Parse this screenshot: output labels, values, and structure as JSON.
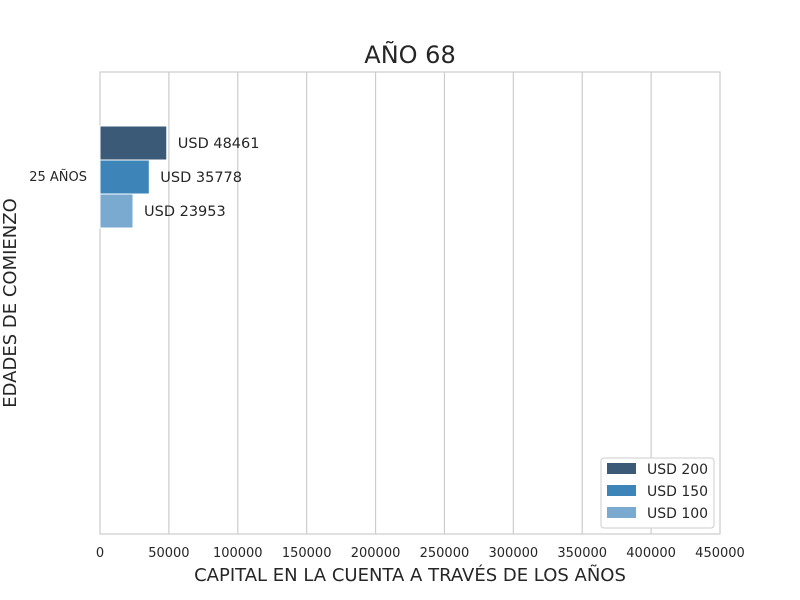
{
  "chart_data": {
    "type": "bar",
    "orientation": "horizontal",
    "title": "AÑO 68",
    "xlabel": "CAPITAL EN LA CUENTA A TRAVÉS DE LOS AÑOS",
    "ylabel": "EDADES DE COMIENZO",
    "xlim": [
      0,
      450000
    ],
    "xticks": [
      "0",
      "50000",
      "100000",
      "150000",
      "200000",
      "250000",
      "300000",
      "350000",
      "400000",
      "450000"
    ],
    "categories": [
      "25 AÑOS"
    ],
    "grid": "vertical",
    "legend_position": "bottom-right",
    "series": [
      {
        "name": "USD 200",
        "color": "#3a5a78",
        "values": [
          48461
        ],
        "labels": [
          "USD 48461"
        ]
      },
      {
        "name": "USD 150",
        "color": "#3d85b8",
        "values": [
          35778
        ],
        "labels": [
          "USD 35778"
        ]
      },
      {
        "name": "USD 100",
        "color": "#7aaad0",
        "values": [
          23953
        ],
        "labels": [
          "USD 23953"
        ]
      }
    ]
  }
}
